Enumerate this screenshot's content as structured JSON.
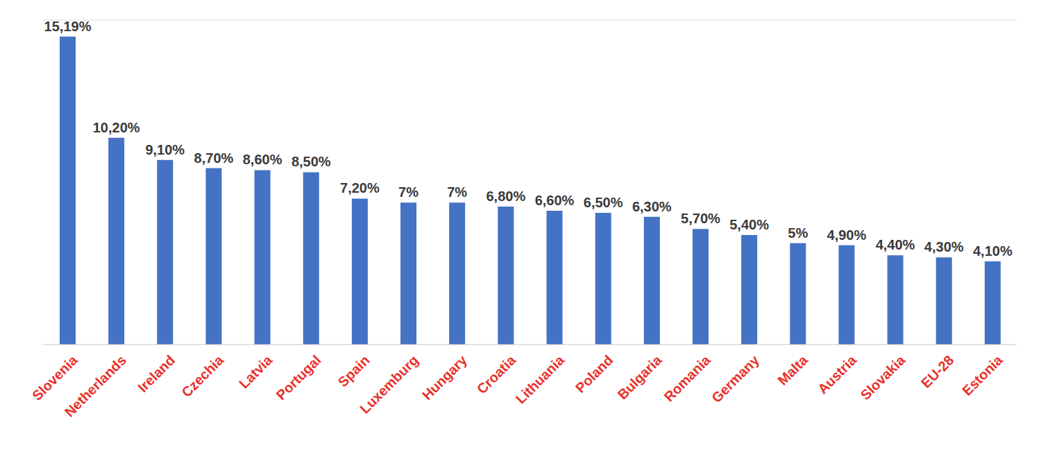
{
  "chart_data": {
    "type": "bar",
    "categories": [
      "Slovenia",
      "Netherlands",
      "Ireland",
      "Czechia",
      "Latvia",
      "Portugal",
      "Spain",
      "Luxemburg",
      "Hungary",
      "Croatia",
      "Lithuania",
      "Poland",
      "Bulgaria",
      "Romania",
      "Germany",
      "Malta",
      "Austria",
      "Slovakia",
      "EU-28",
      "Estonia"
    ],
    "values": [
      15.19,
      10.2,
      9.1,
      8.7,
      8.6,
      8.5,
      7.2,
      7,
      7,
      6.8,
      6.6,
      6.5,
      6.3,
      5.7,
      5.4,
      5,
      4.9,
      4.4,
      4.3,
      4.1
    ],
    "value_labels": [
      "15,19%",
      "10,20%",
      "9,10%",
      "8,70%",
      "8,60%",
      "8,50%",
      "7,20%",
      "7%",
      "7%",
      "6,80%",
      "6,60%",
      "6,50%",
      "6,30%",
      "5,70%",
      "5,40%",
      "5%",
      "4,90%",
      "4,40%",
      "4,30%",
      "4,10%"
    ],
    "color": "#4472c4",
    "ylim": [
      0,
      16
    ],
    "yticks": [
      0,
      2,
      4,
      6,
      8,
      10,
      12,
      14,
      16
    ],
    "grid": true,
    "data_labels": true,
    "tick_labels": "x"
  }
}
